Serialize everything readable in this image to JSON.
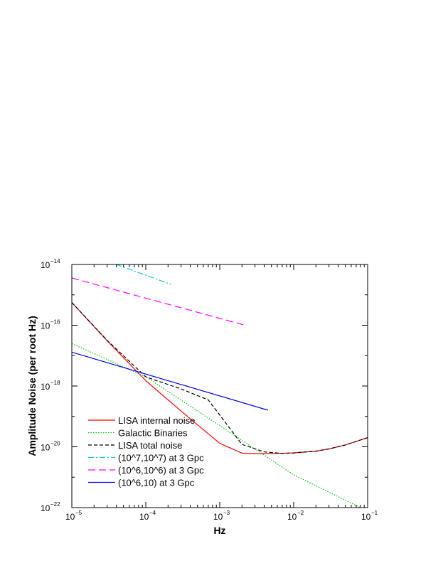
{
  "chart_data": {
    "type": "line",
    "xlabel": "Hz",
    "ylabel": "Amplitude Noise (per root Hz)",
    "xscale": "log",
    "yscale": "log",
    "xlim": [
      1e-05,
      0.1
    ],
    "ylim": [
      1e-22,
      1e-14
    ],
    "x_ticks": [
      {
        "base": "10",
        "exp": "−5",
        "value": 1e-05
      },
      {
        "base": "10",
        "exp": "−4",
        "value": 0.0001
      },
      {
        "base": "10",
        "exp": "−3",
        "value": 0.001
      },
      {
        "base": "10",
        "exp": "−2",
        "value": 0.01
      },
      {
        "base": "10",
        "exp": "−1",
        "value": 0.1
      }
    ],
    "y_ticks": [
      {
        "base": "10",
        "exp": "−22",
        "value": 1e-22
      },
      {
        "base": "10",
        "exp": "−20",
        "value": 1e-20
      },
      {
        "base": "10",
        "exp": "−18",
        "value": 1e-18
      },
      {
        "base": "10",
        "exp": "−16",
        "value": 1e-16
      },
      {
        "base": "10",
        "exp": "−14",
        "value": 1e-14
      }
    ],
    "legend_position": "lower-left",
    "grid": false,
    "series": [
      {
        "name": "LISA internal noise",
        "color": "#ff0000",
        "dash": "solid",
        "x": [
          1e-05,
          3e-05,
          0.0001,
          0.0003,
          0.001,
          0.002,
          0.003,
          0.005,
          0.01,
          0.02,
          0.03,
          0.05,
          0.1
        ],
        "y": [
          5.6e-16,
          3.1e-17,
          1.5e-18,
          1.5e-19,
          1.3e-20,
          6.2e-21,
          6e-21,
          6e-21,
          6.3e-21,
          7.2e-21,
          8.5e-21,
          1.15e-20,
          2e-20
        ]
      },
      {
        "name": "Galactic Binaries",
        "color": "#00cc00",
        "dash": "dotted",
        "x": [
          1e-05,
          0.0001,
          0.001,
          0.01,
          0.08
        ],
        "y": [
          2.5e-17,
          2e-18,
          5e-20,
          1.2e-21,
          1e-22
        ]
      },
      {
        "name": "LISA  total noise",
        "color": "#000000",
        "dash": "dashed",
        "x": [
          1e-05,
          3e-05,
          0.0001,
          0.0003,
          0.0007,
          0.002,
          0.004,
          0.007,
          0.01,
          0.02,
          0.03,
          0.05,
          0.1
        ],
        "y": [
          5.6e-16,
          3.2e-17,
          2e-18,
          8e-19,
          3.5e-19,
          1.2e-20,
          6.8e-21,
          6.1e-21,
          6.3e-21,
          7.2e-21,
          8.5e-21,
          1.15e-20,
          2e-20
        ]
      },
      {
        "name": "(10^7,10^7) at 3 Gpc",
        "color": "#00cccc",
        "dash": "dashdot",
        "x": [
          4e-05,
          0.00022
        ],
        "y": [
          1e-14,
          2.2e-15
        ]
      },
      {
        "name": "(10^6,10^6) at 3 Gpc",
        "color": "#ff00ff",
        "dash": "longdash",
        "x": [
          1e-05,
          0.0022
        ],
        "y": [
          3.6e-15,
          1e-16
        ]
      },
      {
        "name": "(10^6,10) at 3 Gpc",
        "color": "#0000ff",
        "dash": "solid",
        "x": [
          1e-05,
          0.0045
        ],
        "y": [
          1.3e-17,
          1.6e-19
        ]
      }
    ]
  }
}
